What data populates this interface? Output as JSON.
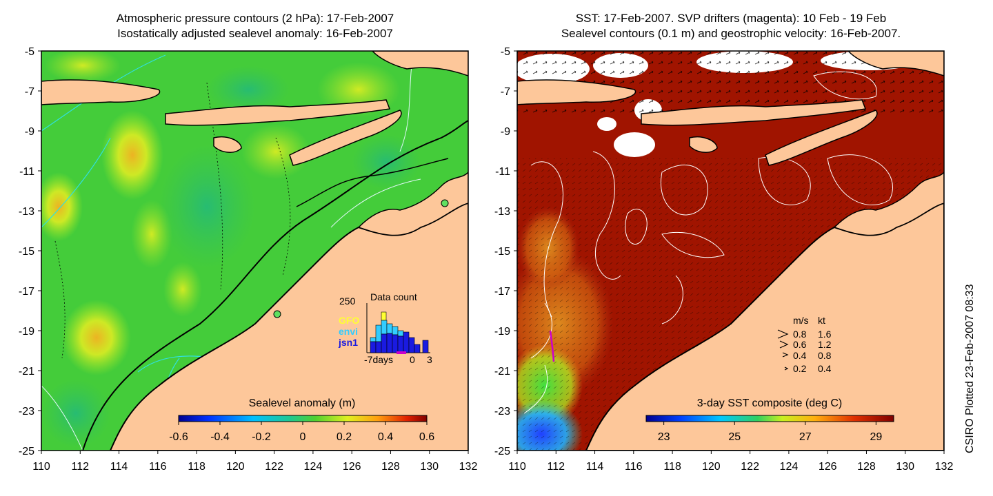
{
  "left_panel": {
    "title_line1": "Atmospheric pressure contours (2 hPa): 17-Feb-2007",
    "title_line2": "Isostatically adjusted sealevel anomaly: 16-Feb-2007",
    "colorbar": {
      "label": "Sealevel anomaly (m)",
      "ticks": [
        "-0.6",
        "-0.4",
        "-0.2",
        "0",
        "0.2",
        "0.4",
        "0.6"
      ],
      "range": [
        -0.6,
        0.6
      ]
    },
    "inset": {
      "title": "Data count",
      "y_max_label": "250",
      "x_labels": [
        "-7days",
        "0",
        "3"
      ],
      "legend": [
        {
          "label": "GFO",
          "color": "#ffff33"
        },
        {
          "label": "envi",
          "color": "#33ccff"
        },
        {
          "label": "jsn1",
          "color": "#1a1ae0"
        }
      ]
    }
  },
  "right_panel": {
    "title_line1": "SST: 17-Feb-2007. SVP drifters (magenta): 10 Feb - 19 Feb",
    "title_line2": "Sealevel contours (0.1 m) and geostrophic velocity: 16-Feb-2007.",
    "colorbar": {
      "label": "3-day SST composite (deg C)",
      "ticks": [
        "23",
        "25",
        "27",
        "29"
      ],
      "range": [
        22.5,
        29.5
      ]
    },
    "velocity_legend": {
      "header_ms": "m/s",
      "header_kt": "kt",
      "rows": [
        {
          "ms": "0.8",
          "kt": "1.6"
        },
        {
          "ms": "0.6",
          "kt": "1.2"
        },
        {
          "ms": "0.4",
          "kt": "0.8"
        },
        {
          "ms": "0.2",
          "kt": "0.4"
        }
      ]
    }
  },
  "axes": {
    "lon_ticks": [
      "110",
      "112",
      "114",
      "116",
      "118",
      "120",
      "122",
      "124",
      "126",
      "128",
      "130",
      "132"
    ],
    "lat_ticks": [
      "-5",
      "-7",
      "-9",
      "-11",
      "-13",
      "-15",
      "-17",
      "-19",
      "-21",
      "-23",
      "-25"
    ],
    "lon_range": [
      110,
      132
    ],
    "lat_range": [
      -25,
      -5
    ]
  },
  "credit": "CSIRO Plotted 23-Feb-2007 08:33",
  "colors": {
    "land": "#fdc79a",
    "ocean_sla_base": "#44cc3a",
    "sst_warm": "#a01400",
    "contour": "#000000",
    "drifter": "#cc00cc"
  }
}
